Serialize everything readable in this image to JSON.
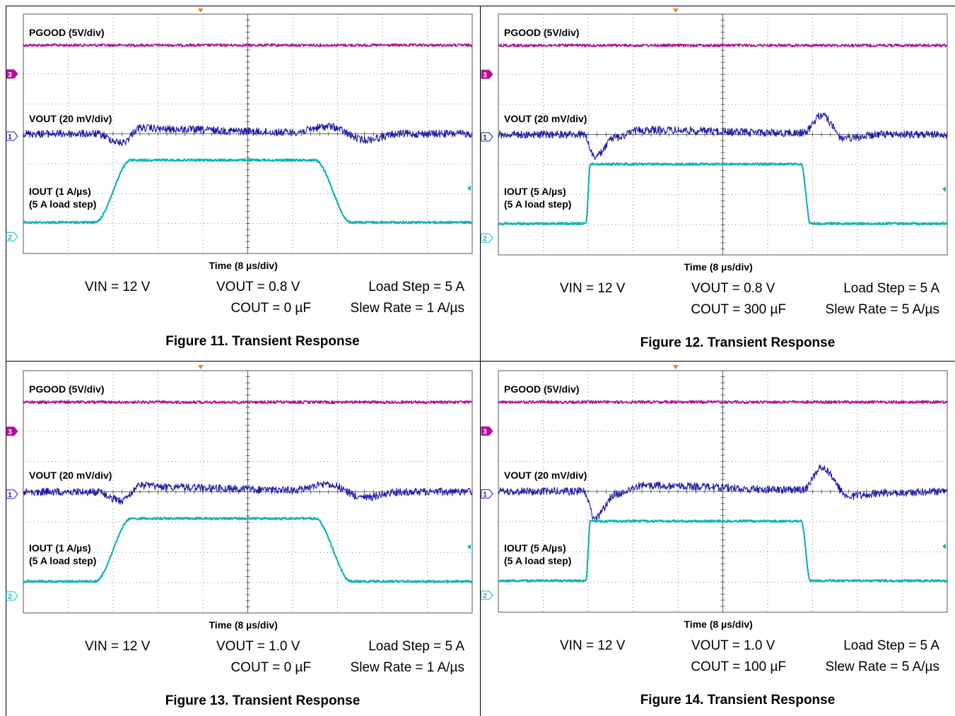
{
  "colors": {
    "pgood": "#b2109a",
    "vout": "#1c1ca6",
    "iout": "#17b4b4",
    "marker_orange": "#e08a1e",
    "grid": "#666666"
  },
  "icons": [
    "ch3-marker-icon",
    "ch1-marker-icon",
    "ch2-marker-icon",
    "trigger-marker-icon",
    "trigger-level-icon"
  ],
  "figures": [
    {
      "caption": "Figure 11. Transient Response",
      "pgood_label": "PGOOD (5V/div)",
      "vout_label": "VOUT (20 mV/div)",
      "iout_label_1": "IOUT (1 A/µs)",
      "iout_label_2": "(5 A load step)",
      "time_label": "Time (8 µs/div)",
      "ch_markers": {
        "pgood": "3",
        "vout": "1",
        "iout": "2"
      },
      "cond_vin": "VIN = 12 V",
      "cond_vout": "VOUT = 0.8 V",
      "cond_load": "Load Step = 5 A",
      "cond_cout": "COUT = 0 µF",
      "cond_slew": "Slew Rate = 1 A/µs",
      "chart_data": {
        "type": "line",
        "time_div_us": 8,
        "divisions": 10,
        "slew_rate_A_per_us": 1,
        "load_step_A": 5,
        "series": [
          {
            "name": "PGOOD (5V/div)",
            "points_div": [
              [
                0,
                0
              ],
              [
                10,
                0
              ]
            ]
          },
          {
            "name": "VOUT (20 mV/div)",
            "points_div": [
              [
                0,
                0
              ],
              [
                1.6,
                0
              ],
              [
                2.2,
                -0.3
              ],
              [
                2.6,
                0.2
              ],
              [
                3.2,
                0.15
              ],
              [
                6.0,
                0.05
              ],
              [
                6.8,
                0.25
              ],
              [
                7.6,
                -0.2
              ],
              [
                8.4,
                0
              ],
              [
                10,
                0
              ]
            ]
          },
          {
            "name": "IOUT (1 A/µs)",
            "points_div": [
              [
                0,
                0
              ],
              [
                1.6,
                0
              ],
              [
                2.4,
                1.0
              ],
              [
                6.5,
                1.0
              ],
              [
                7.3,
                0
              ],
              [
                10,
                0
              ]
            ]
          }
        ]
      }
    },
    {
      "caption": "Figure 12. Transient Response",
      "pgood_label": "PGOOD (5V/div)",
      "vout_label": "VOUT (20 mV/div)",
      "iout_label_1": "IOUT (5 A/µs)",
      "iout_label_2": "(5 A load step)",
      "time_label": "Time (8 µs/div)",
      "ch_markers": {
        "pgood": "3",
        "vout": "1",
        "iout": "2"
      },
      "cond_vin": "VIN = 12 V",
      "cond_vout": "VOUT = 0.8 V",
      "cond_load": "Load Step = 5 A",
      "cond_cout": "COUT = 300 µF",
      "cond_slew": "Slew Rate = 5 A/µs",
      "chart_data": {
        "type": "line",
        "time_div_us": 8,
        "divisions": 10,
        "slew_rate_A_per_us": 5,
        "load_step_A": 5,
        "series": [
          {
            "name": "PGOOD (5V/div)",
            "points_div": [
              [
                0,
                0
              ],
              [
                10,
                0
              ]
            ]
          },
          {
            "name": "VOUT (20 mV/div)",
            "points_div": [
              [
                0,
                0
              ],
              [
                1.9,
                0
              ],
              [
                2.15,
                -0.75
              ],
              [
                2.6,
                -0.1
              ],
              [
                3.2,
                0.15
              ],
              [
                6.8,
                0.05
              ],
              [
                7.2,
                0.65
              ],
              [
                7.7,
                -0.15
              ],
              [
                8.5,
                0
              ],
              [
                10,
                0
              ]
            ]
          },
          {
            "name": "IOUT (5 A/µs)",
            "points_div": [
              [
                0,
                0
              ],
              [
                1.95,
                0
              ],
              [
                2.05,
                0.95
              ],
              [
                6.75,
                0.95
              ],
              [
                6.95,
                0
              ],
              [
                10,
                0
              ]
            ]
          }
        ]
      }
    },
    {
      "caption": "Figure 13. Transient Response",
      "pgood_label": "PGOOD (5V/div)",
      "vout_label": "VOUT (20 mV/div)",
      "iout_label_1": "IOUT (1 A/µs)",
      "iout_label_2": "(5 A load step)",
      "time_label": "Time (8 µs/div)",
      "ch_markers": {
        "pgood": "3",
        "vout": "1",
        "iout": "2"
      },
      "cond_vin": "VIN = 12 V",
      "cond_vout": "VOUT = 1.0 V",
      "cond_load": "Load Step = 5 A",
      "cond_cout": "COUT = 0 µF",
      "cond_slew": "Slew Rate = 1 A/µs",
      "chart_data": {
        "type": "line",
        "time_div_us": 8,
        "divisions": 10,
        "slew_rate_A_per_us": 1,
        "load_step_A": 5,
        "series": [
          {
            "name": "PGOOD (5V/div)",
            "points_div": [
              [
                0,
                0
              ],
              [
                10,
                0
              ]
            ]
          },
          {
            "name": "VOUT (20 mV/div)",
            "points_div": [
              [
                0,
                0
              ],
              [
                1.6,
                0
              ],
              [
                2.2,
                -0.3
              ],
              [
                2.6,
                0.2
              ],
              [
                3.2,
                0.15
              ],
              [
                6.0,
                0.05
              ],
              [
                6.8,
                0.25
              ],
              [
                7.6,
                -0.2
              ],
              [
                8.4,
                0
              ],
              [
                10,
                0
              ]
            ]
          },
          {
            "name": "IOUT (1 A/µs)",
            "points_div": [
              [
                0,
                0
              ],
              [
                1.6,
                0
              ],
              [
                2.4,
                1.0
              ],
              [
                6.5,
                1.0
              ],
              [
                7.3,
                0
              ],
              [
                10,
                0
              ]
            ]
          }
        ]
      }
    },
    {
      "caption": "Figure 14. Transient Response",
      "pgood_label": "PGOOD (5V/div)",
      "vout_label": "VOUT (20 mV/div)",
      "iout_label_1": "IOUT (5 A/µs)",
      "iout_label_2": "(5 A load step)",
      "time_label": "Time (8 µs/div)",
      "ch_markers": {
        "pgood": "3",
        "vout": "1",
        "iout": "2"
      },
      "cond_vin": "VIN = 12 V",
      "cond_vout": "VOUT = 1.0 V",
      "cond_load": "Load Step = 5 A",
      "cond_cout": "COUT = 100 µF",
      "cond_slew": "Slew Rate = 5 A/µs",
      "chart_data": {
        "type": "line",
        "time_div_us": 8,
        "divisions": 10,
        "slew_rate_A_per_us": 5,
        "load_step_A": 5,
        "series": [
          {
            "name": "PGOOD (5V/div)",
            "points_div": [
              [
                0,
                0
              ],
              [
                10,
                0
              ]
            ]
          },
          {
            "name": "VOUT (20 mV/div)",
            "points_div": [
              [
                0,
                0
              ],
              [
                1.9,
                0
              ],
              [
                2.15,
                -0.9
              ],
              [
                2.6,
                -0.1
              ],
              [
                3.2,
                0.2
              ],
              [
                6.8,
                0.05
              ],
              [
                7.2,
                0.8
              ],
              [
                7.8,
                -0.15
              ],
              [
                8.6,
                -0.05
              ],
              [
                10,
                0
              ]
            ]
          },
          {
            "name": "IOUT (5 A/µs)",
            "points_div": [
              [
                0,
                0
              ],
              [
                1.95,
                0
              ],
              [
                2.05,
                0.95
              ],
              [
                6.75,
                0.95
              ],
              [
                6.95,
                0
              ],
              [
                10,
                0
              ]
            ]
          }
        ]
      }
    }
  ]
}
